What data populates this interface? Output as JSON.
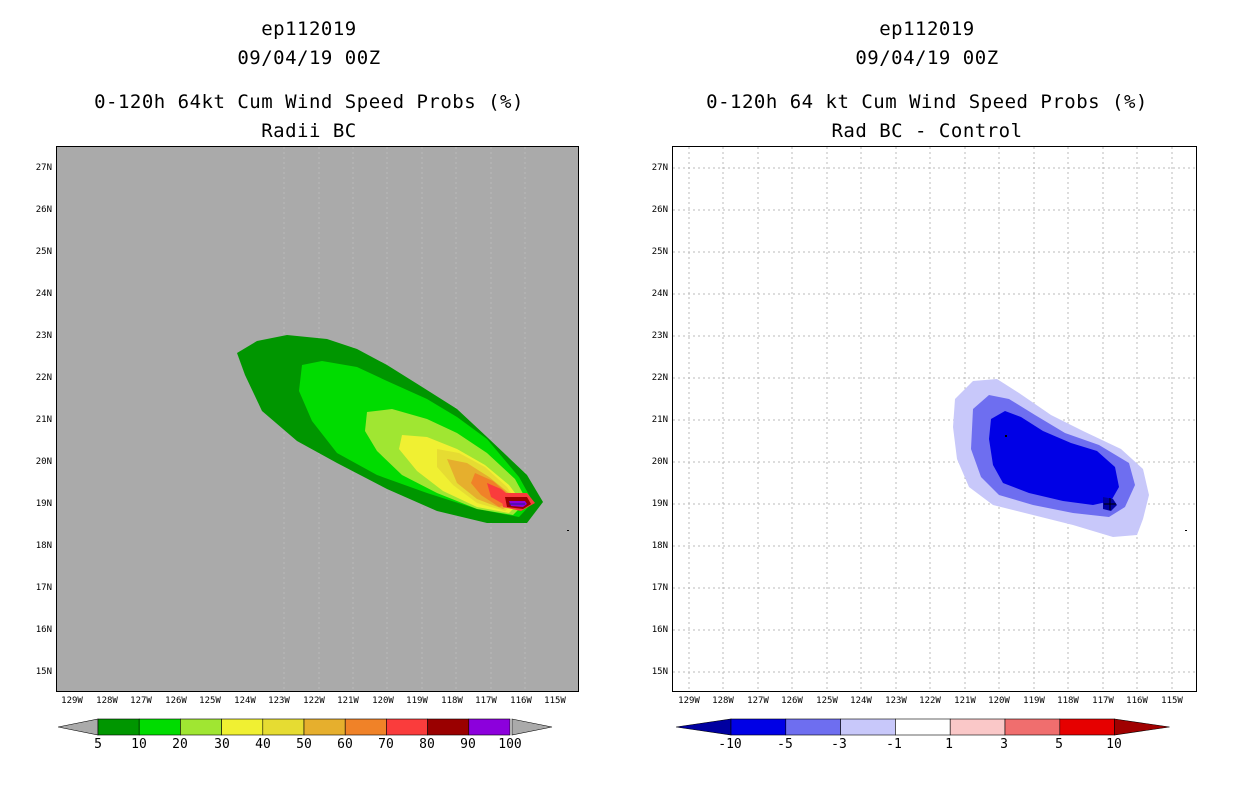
{
  "left_panel": {
    "storm_id": "ep112019",
    "datetime": "09/04/19 00Z",
    "title": "0-120h 64kt Cum Wind Speed Probs (%)",
    "subtitle": "Radii BC",
    "colorbar": {
      "labels": [
        "5",
        "10",
        "20",
        "30",
        "40",
        "50",
        "60",
        "70",
        "80",
        "90",
        "100"
      ],
      "colors": [
        "#009600",
        "#00dc00",
        "#a0e632",
        "#f0f032",
        "#e6dc32",
        "#e6af2d",
        "#f08228",
        "#fa3c3c",
        "#9a0000",
        "#8c00dc"
      ]
    }
  },
  "right_panel": {
    "storm_id": "ep112019",
    "datetime": "09/04/19 00Z",
    "title": "0-120h 64 kt Cum Wind Speed Probs (%)",
    "subtitle": "Rad BC - Control",
    "colorbar": {
      "labels": [
        "-10",
        "-5",
        "-3",
        "-1",
        "1",
        "3",
        "5",
        "10"
      ],
      "colors": [
        "#0000a0",
        "#0000e6",
        "#6e6ef0",
        "#c8c8fa",
        "#ffffff",
        "#fac8c8",
        "#f06e6e",
        "#e60000",
        "#a00000"
      ]
    }
  },
  "axes": {
    "lat_labels": [
      "27N",
      "26N",
      "25N",
      "24N",
      "23N",
      "22N",
      "21N",
      "20N",
      "19N",
      "18N",
      "17N",
      "16N",
      "15N"
    ],
    "lon_labels": [
      "129W",
      "128W",
      "127W",
      "126W",
      "125W",
      "124W",
      "123W",
      "122W",
      "121W",
      "120W",
      "119W",
      "118W",
      "117W",
      "116W",
      "115W"
    ]
  },
  "colors": {
    "map_background_left": "#aaaaaa",
    "grid": "#bbbbbb"
  }
}
